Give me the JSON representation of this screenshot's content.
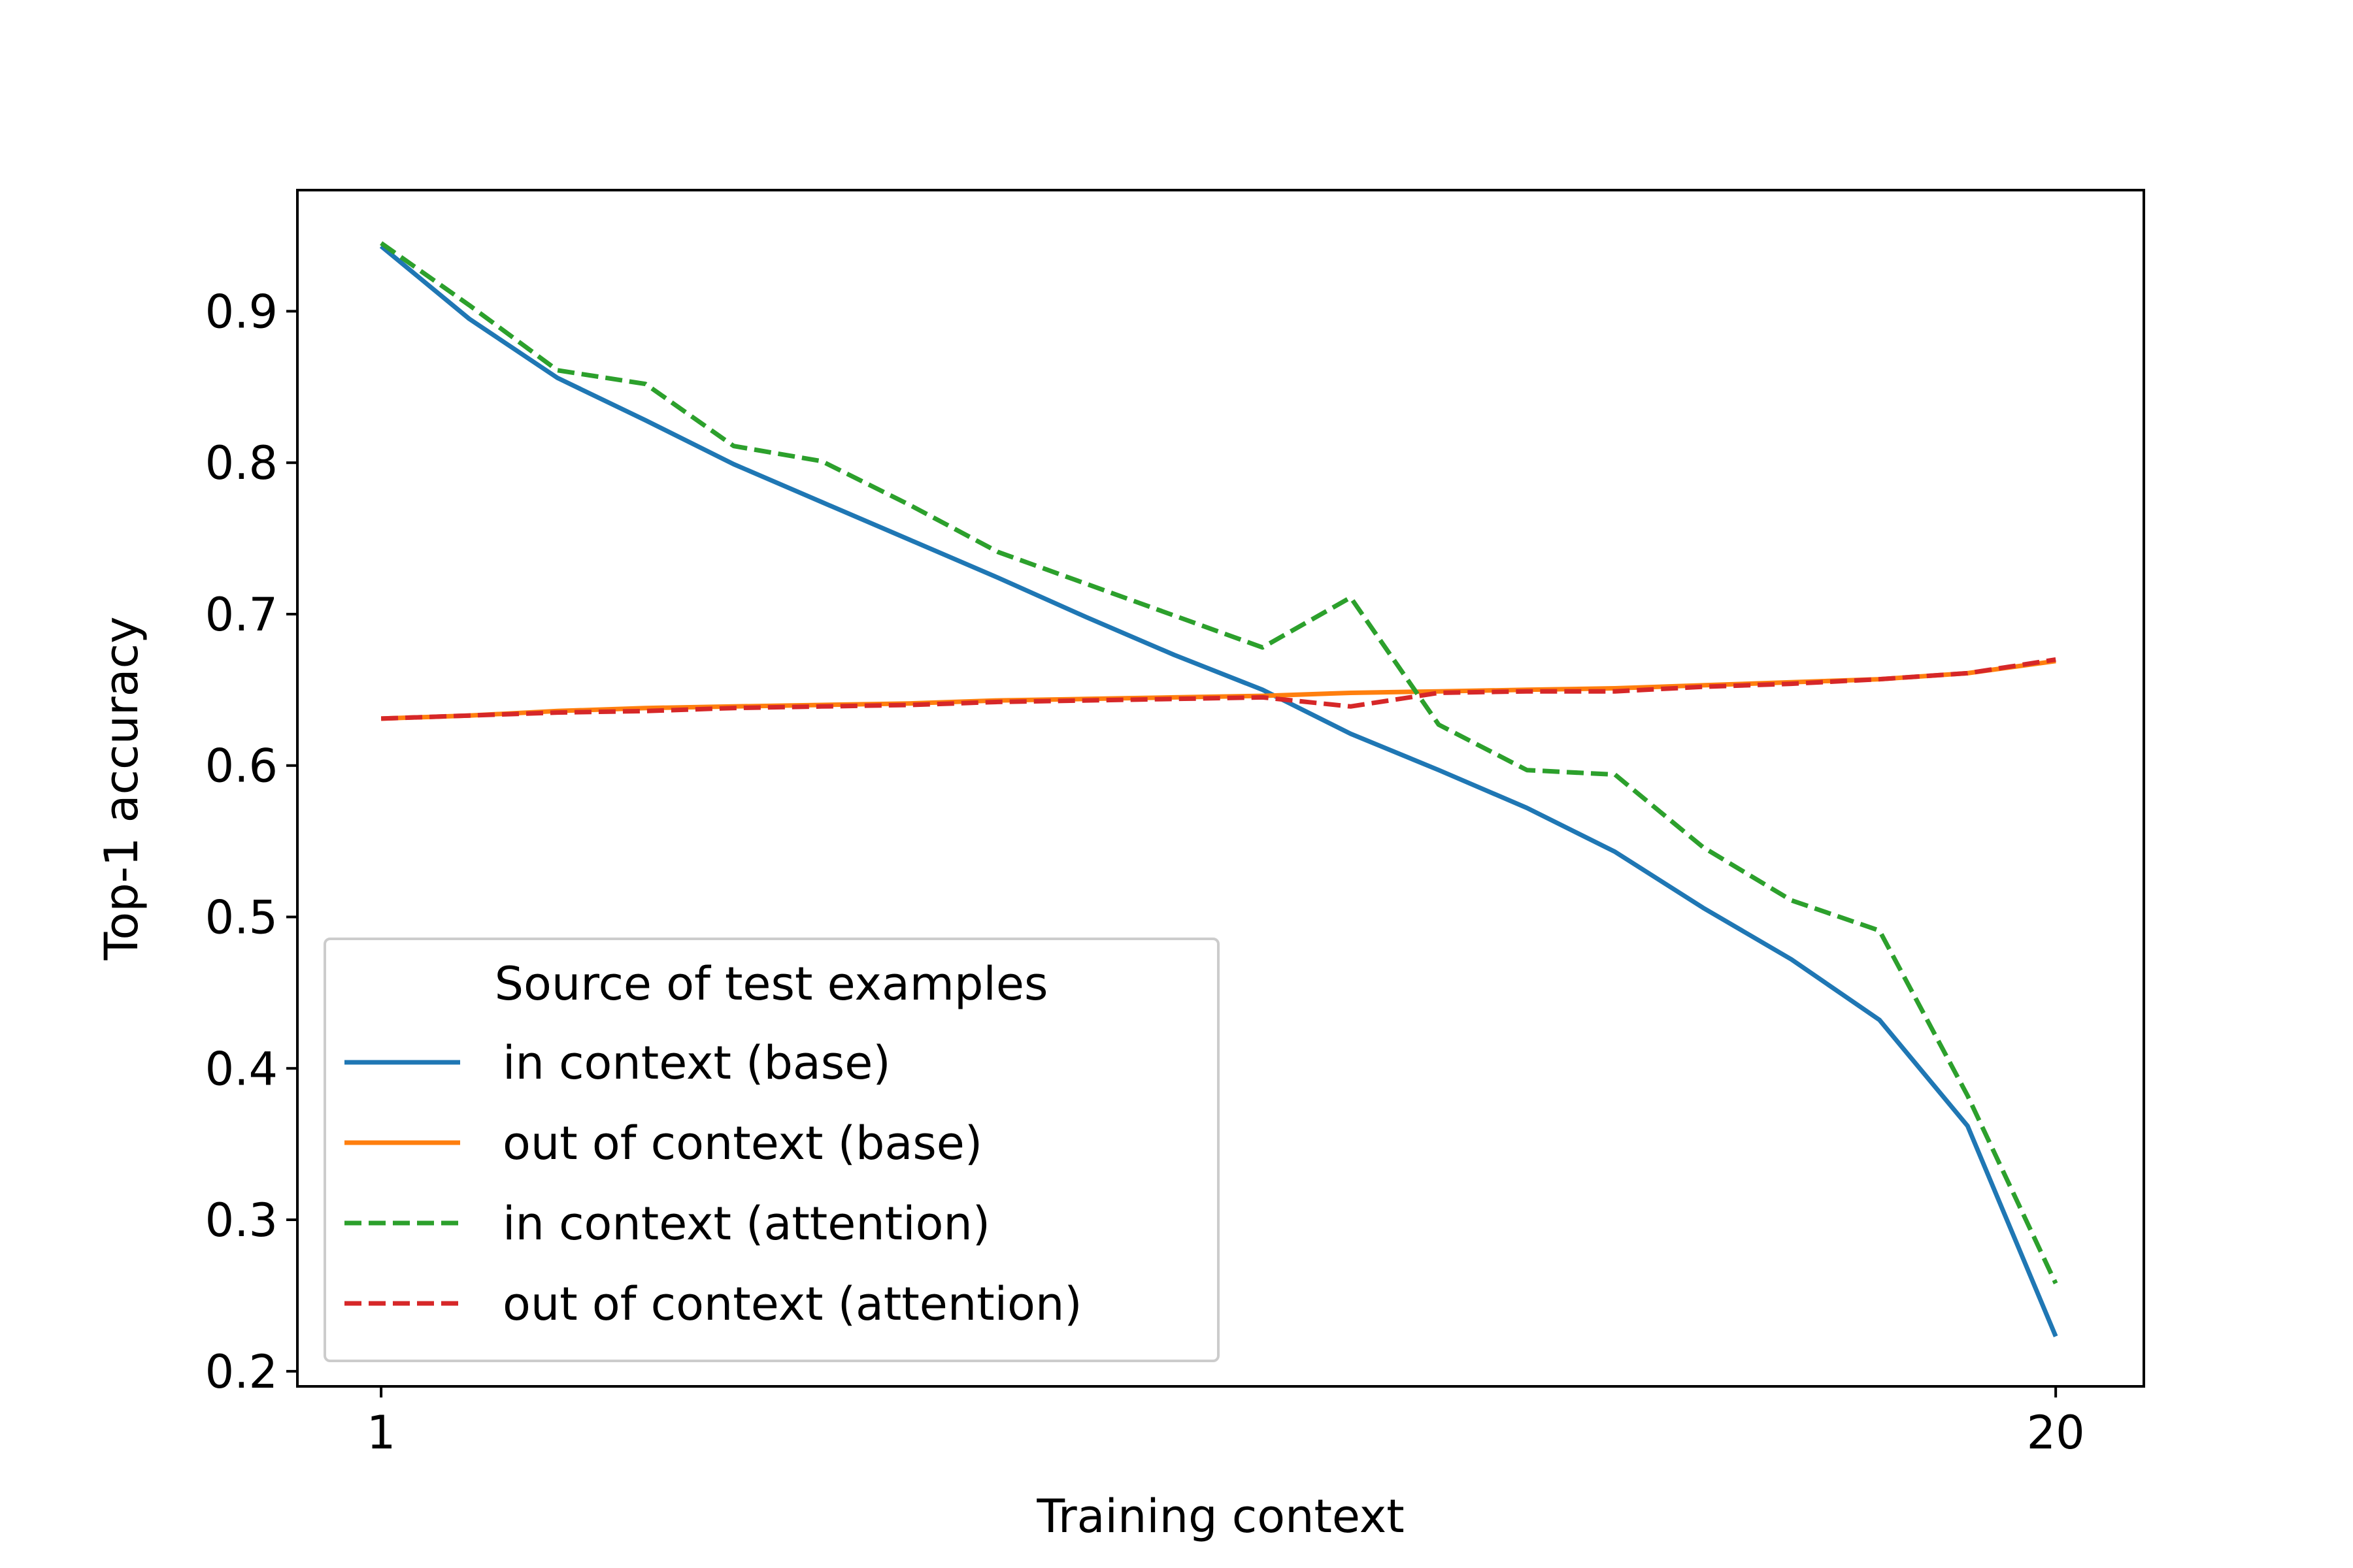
{
  "chart_data": {
    "type": "line",
    "title": "",
    "xlabel": "Training context",
    "ylabel": "Top-1 accuracy",
    "xlim": [
      0.05,
      21.0
    ],
    "ylim": [
      0.19,
      0.98
    ],
    "x": [
      1,
      2,
      3,
      4,
      5,
      6,
      7,
      8,
      9,
      10,
      11,
      12,
      13,
      14,
      15,
      16,
      17,
      18,
      19,
      20
    ],
    "xticks": [
      1,
      20
    ],
    "xtick_labels": [
      "1",
      "20"
    ],
    "yticks": [
      0.2,
      0.3,
      0.4,
      0.5,
      0.6,
      0.7,
      0.8,
      0.9
    ],
    "ytick_labels": [
      "0.2",
      "0.3",
      "0.4",
      "0.5",
      "0.6",
      "0.7",
      "0.8",
      "0.9"
    ],
    "grid": false,
    "legend": {
      "title": "Source of test examples",
      "placement": "lower-left"
    },
    "series": [
      {
        "name": "in context (base)",
        "color": "#1f77b4",
        "style": "solid",
        "values": [
          0.943,
          0.895,
          0.856,
          0.828,
          0.799,
          0.774,
          0.749,
          0.724,
          0.698,
          0.673,
          0.65,
          0.621,
          0.597,
          0.572,
          0.543,
          0.506,
          0.472,
          0.432,
          0.362,
          0.223
        ]
      },
      {
        "name": "out of context (base)",
        "color": "#ff7f0e",
        "style": "solid",
        "values": [
          0.631,
          0.633,
          0.636,
          0.638,
          0.639,
          0.64,
          0.641,
          0.643,
          0.644,
          0.645,
          0.646,
          0.648,
          0.649,
          0.65,
          0.651,
          0.653,
          0.655,
          0.657,
          0.661,
          0.669
        ]
      },
      {
        "name": "in context (attention)",
        "color": "#2ca02c",
        "style": "dashed",
        "values": [
          0.945,
          0.904,
          0.861,
          0.852,
          0.811,
          0.801,
          0.772,
          0.741,
          0.72,
          0.699,
          0.678,
          0.711,
          0.627,
          0.597,
          0.594,
          0.546,
          0.511,
          0.491,
          0.382,
          0.258
        ]
      },
      {
        "name": "out of context (attention)",
        "color": "#d62728",
        "style": "dashed",
        "values": [
          0.631,
          0.633,
          0.635,
          0.636,
          0.638,
          0.639,
          0.64,
          0.642,
          0.643,
          0.644,
          0.645,
          0.639,
          0.648,
          0.649,
          0.649,
          0.652,
          0.654,
          0.657,
          0.661,
          0.67
        ]
      }
    ]
  }
}
